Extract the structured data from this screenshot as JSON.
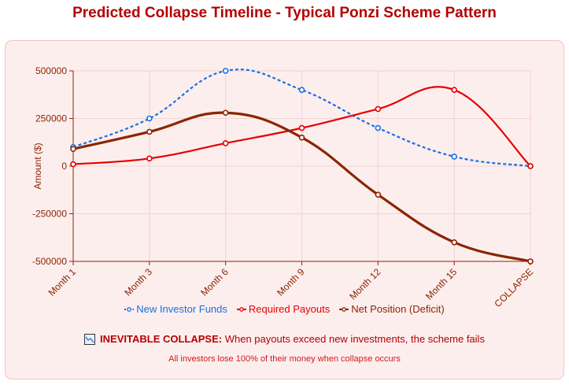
{
  "page": {
    "title": "Predicted Collapse Timeline - Typical Ponzi Scheme Pattern"
  },
  "footer": {
    "collapse_label": "INEVITABLE COLLAPSE:",
    "collapse_text": "When payouts exceed new investments, the scheme fails",
    "loss_text": "All investors lose 100% of their money when collapse occurs",
    "icon": "chart-warning-icon"
  },
  "chart_data": {
    "type": "line",
    "title": "Predicted Collapse Timeline - Typical Ponzi Scheme Pattern",
    "xlabel": "",
    "ylabel": "Amount ($)",
    "categories": [
      "Month 1",
      "Month 3",
      "Month 6",
      "Month 9",
      "Month 12",
      "Month 15",
      "COLLAPSE"
    ],
    "ylim": [
      -500000,
      500000
    ],
    "yticks": [
      500000,
      250000,
      0,
      -250000,
      -500000
    ],
    "grid": true,
    "legend": "bottom",
    "series": [
      {
        "name": "New Investor Funds",
        "color": "#1a6fe0",
        "dashed": true,
        "values": [
          100000,
          250000,
          500000,
          400000,
          200000,
          50000,
          0
        ]
      },
      {
        "name": "Required Payouts",
        "color": "#e60000",
        "dashed": false,
        "values": [
          10000,
          40000,
          120000,
          200000,
          300000,
          400000,
          0
        ]
      },
      {
        "name": "Net Position (Deficit)",
        "color": "#8b2500",
        "dashed": false,
        "values": [
          90000,
          180000,
          280000,
          150000,
          -150000,
          -400000,
          -500000
        ]
      }
    ]
  }
}
